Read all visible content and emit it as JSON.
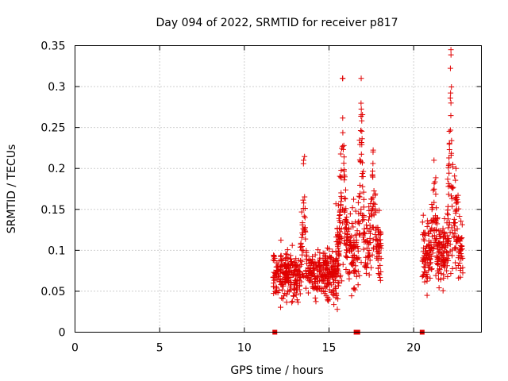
{
  "chart_data": {
    "type": "scatter",
    "title": "Day 094 of 2022, SRMTID for receiver p817",
    "xlabel": "GPS time / hours",
    "ylabel": "SRMTID / TECUs",
    "xlim": [
      0,
      24
    ],
    "ylim": [
      0,
      0.35
    ],
    "xticks": [
      0,
      5,
      10,
      15,
      20
    ],
    "xtick_labels": [
      "0",
      "5",
      "10",
      "15",
      "20"
    ],
    "yticks": [
      0,
      0.05,
      0.1,
      0.15,
      0.2,
      0.25,
      0.3,
      0.35
    ],
    "ytick_labels": [
      "0",
      "0.05",
      "0.1",
      "0.15",
      "0.2",
      "0.25",
      "0.3",
      "0.35"
    ],
    "grid": true,
    "marker": "+",
    "color": "#e00000",
    "zero_markers_x": [
      11.8,
      16.6,
      16.7,
      20.5
    ],
    "clusters": [
      {
        "x_start": 11.7,
        "x_end": 15.6,
        "n": 500,
        "base": 0.07,
        "spread": 0.03,
        "min": 0.02,
        "max": 0.22
      },
      {
        "x_start": 15.4,
        "x_end": 18.1,
        "n": 360,
        "base": 0.1,
        "spread": 0.045,
        "min": 0.04,
        "max": 0.31
      },
      {
        "x_start": 20.5,
        "x_end": 22.9,
        "n": 340,
        "base": 0.095,
        "spread": 0.04,
        "min": 0.045,
        "max": 0.345
      }
    ],
    "peaks": [
      {
        "x": 13.5,
        "y": 0.21
      },
      {
        "x": 15.8,
        "y": 0.31
      },
      {
        "x": 16.9,
        "y": 0.31
      },
      {
        "x": 17.6,
        "y": 0.22
      },
      {
        "x": 21.2,
        "y": 0.21
      },
      {
        "x": 22.2,
        "y": 0.345
      },
      {
        "x": 22.5,
        "y": 0.2
      }
    ]
  }
}
